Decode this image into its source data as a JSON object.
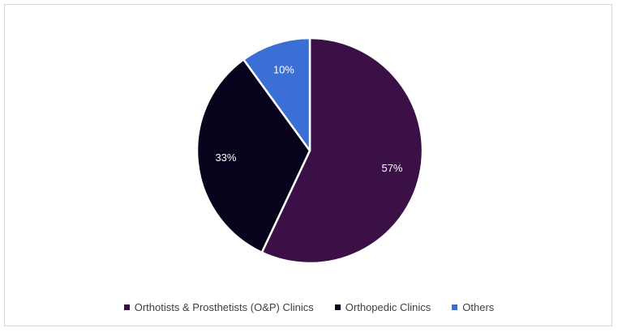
{
  "chart_data": {
    "type": "pie",
    "title": "",
    "categories": [
      "Orthotists & Prosthetists (O&P) Clinics",
      "Orthopedic Clinics",
      "Others"
    ],
    "values": [
      57,
      33,
      10
    ],
    "data_labels": [
      "57%",
      "33%",
      "10%"
    ],
    "colors": [
      "#3a1046",
      "#07031c",
      "#3b6fd6"
    ],
    "legend_position": "bottom",
    "start_angle_deg": 0,
    "direction": "clockwise"
  }
}
